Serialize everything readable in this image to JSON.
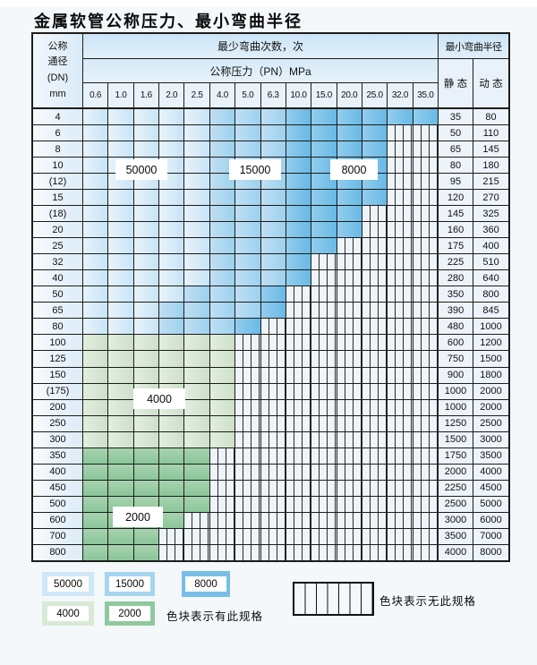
{
  "page": {
    "title": "金属软管公称压力、最小弯曲半径"
  },
  "table": {
    "corner": {
      "line1": "公称",
      "line2": "通径",
      "line3": "(DN)",
      "line4": "mm"
    },
    "cycles_header": "最少弯曲次数，次",
    "pressure_header": "公称压力（PN）MPa",
    "radius_header": "最小弯曲半径",
    "static_header": "静 态",
    "dynamic_header": "动 态",
    "pressures": [
      "0.6",
      "1.0",
      "1.6",
      "2.0",
      "2.5",
      "4.0",
      "5.0",
      "6.3",
      "10.0",
      "15.0",
      "20.0",
      "25.0",
      "32.0",
      "35.0"
    ],
    "cell_legend": {
      "b1": "50000次区",
      "b2": "15000次区",
      "b3": "8000次区",
      "g1": "4000次区",
      "g2": "2000次区",
      "nx": "无此规格"
    },
    "rows": [
      {
        "dn": "4",
        "cells": "LLLLLMMMDDDDDD",
        "static": "35",
        "dynamic": "80"
      },
      {
        "dn": "6",
        "cells": "LLLLLMMMDDDDxx",
        "static": "50",
        "dynamic": "110"
      },
      {
        "dn": "8",
        "cells": "LLLLLMMMDDDDxx",
        "static": "65",
        "dynamic": "145"
      },
      {
        "dn": "10",
        "cells": "LLLLLMMMDDDDxx",
        "static": "80",
        "dynamic": "180"
      },
      {
        "dn": "(12)",
        "cells": "LLLLLMMMDDDDxx",
        "static": "95",
        "dynamic": "215"
      },
      {
        "dn": "15",
        "cells": "LLLLLMMMDDDDxx",
        "static": "120",
        "dynamic": "270"
      },
      {
        "dn": "(18)",
        "cells": "LLLLLMMMDDDxxx",
        "static": "145",
        "dynamic": "325"
      },
      {
        "dn": "20",
        "cells": "LLLLLMMMDDDxxx",
        "static": "160",
        "dynamic": "360"
      },
      {
        "dn": "25",
        "cells": "LLLLLMMMDDxxxx",
        "static": "175",
        "dynamic": "400"
      },
      {
        "dn": "32",
        "cells": "LLLLLMMMDxxxxx",
        "static": "225",
        "dynamic": "510"
      },
      {
        "dn": "40",
        "cells": "LLLLLMMMDxxxxx",
        "static": "280",
        "dynamic": "640"
      },
      {
        "dn": "50",
        "cells": "LLLLMMMDxxxxxx",
        "static": "350",
        "dynamic": "800"
      },
      {
        "dn": "65",
        "cells": "LLLMMMMDxxxxxx",
        "static": "390",
        "dynamic": "845"
      },
      {
        "dn": "80",
        "cells": "LLLMMMDxxxxxxx",
        "static": "480",
        "dynamic": "1000"
      },
      {
        "dn": "100",
        "cells": "ggggggxxxxxxxx",
        "static": "600",
        "dynamic": "1200"
      },
      {
        "dn": "125",
        "cells": "ggggggxxxxxxxx",
        "static": "750",
        "dynamic": "1500"
      },
      {
        "dn": "150",
        "cells": "ggggggxxxxxxxx",
        "static": "900",
        "dynamic": "1800"
      },
      {
        "dn": "(175)",
        "cells": "ggggggxxxxxxxx",
        "static": "1000",
        "dynamic": "2000"
      },
      {
        "dn": "200",
        "cells": "ggggggxxxxxxxx",
        "static": "1000",
        "dynamic": "2000"
      },
      {
        "dn": "250",
        "cells": "ggggggxxxxxxxx",
        "static": "1250",
        "dynamic": "2500"
      },
      {
        "dn": "300",
        "cells": "ggggggxxxxxxxx",
        "static": "1500",
        "dynamic": "3000"
      },
      {
        "dn": "350",
        "cells": "GGGGGxxxxxxxxx",
        "static": "1750",
        "dynamic": "3500"
      },
      {
        "dn": "400",
        "cells": "GGGGGxxxxxxxxx",
        "static": "2000",
        "dynamic": "4000"
      },
      {
        "dn": "450",
        "cells": "GGGGGxxxxxxxxx",
        "static": "2250",
        "dynamic": "4500"
      },
      {
        "dn": "500",
        "cells": "GGGGGxxxxxxxxx",
        "static": "2500",
        "dynamic": "5000"
      },
      {
        "dn": "600",
        "cells": "GGGGxxxxxxxxxx",
        "static": "3000",
        "dynamic": "6000"
      },
      {
        "dn": "700",
        "cells": "GGGxxxxxxxxxxx",
        "static": "3500",
        "dynamic": "7000"
      },
      {
        "dn": "800",
        "cells": "GGGxxxxxxxxxxx",
        "static": "4000",
        "dynamic": "8000"
      }
    ]
  },
  "zone_labels": [
    {
      "id": "z50000",
      "label": "50000"
    },
    {
      "id": "z15000",
      "label": "15000"
    },
    {
      "id": "z8000",
      "label": "8000"
    },
    {
      "id": "z4000",
      "label": "4000"
    },
    {
      "id": "z2000",
      "label": "2000"
    }
  ],
  "legend": {
    "swatches": [
      {
        "id": "lg-50000",
        "label": "50000",
        "color": "#cfe7f7"
      },
      {
        "id": "lg-15000",
        "label": "15000",
        "color": "#a6d5ef"
      },
      {
        "id": "lg-8000",
        "label": "8000",
        "color": "#76c0e7"
      },
      {
        "id": "lg-4000",
        "label": "4000",
        "color": "#d9e9d6"
      },
      {
        "id": "lg-2000",
        "label": "2000",
        "color": "#8fc89d"
      }
    ],
    "has_spec_text": "色块表示有此规格",
    "no_spec_text": "色块表示无此规格"
  },
  "colors": {
    "blue_light": "#cfe7f7",
    "blue_mid": "#a6d5ef",
    "blue_dark": "#76c0e7",
    "green_light": "#d9e9d6",
    "green_mid": "#8fc89d",
    "grid": "#1c1c1c",
    "page_bg": "#f4f8fb"
  }
}
